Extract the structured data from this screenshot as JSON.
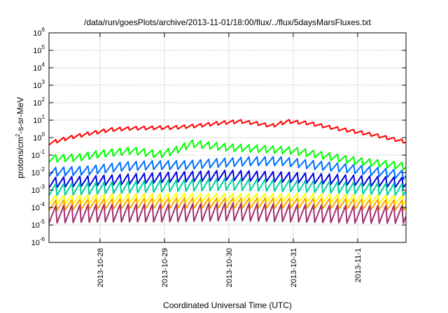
{
  "chart_data": {
    "type": "line",
    "title": "/data/run/goesPlots/archive/2013-11-01/18:00/flux/../flux/5daysMarsFluxes.txt",
    "xlabel": "Coordinated Universal Time (UTC)",
    "ylabel_base": "protons/cm",
    "ylabel_sup": "2",
    "ylabel_rest": "-s-sr-MeV",
    "y_scale": "log",
    "ylim": [
      1e-06,
      1000000.0
    ],
    "xlim": [
      "2013-10-27T05:00",
      "2013-11-01T18:00"
    ],
    "grid": true,
    "legend": "none",
    "y_ticks": [
      {
        "value": 1e-06,
        "base": "10",
        "exp": "-6"
      },
      {
        "value": 1e-05,
        "base": "10",
        "exp": "-5"
      },
      {
        "value": 0.0001,
        "base": "10",
        "exp": "-4"
      },
      {
        "value": 0.001,
        "base": "10",
        "exp": "-3"
      },
      {
        "value": 0.01,
        "base": "10",
        "exp": "-2"
      },
      {
        "value": 0.1,
        "base": "10",
        "exp": "-1"
      },
      {
        "value": 1,
        "base": "10",
        "exp": "0"
      },
      {
        "value": 10.0,
        "base": "10",
        "exp": "1"
      },
      {
        "value": 100.0,
        "base": "10",
        "exp": "2"
      },
      {
        "value": 1000.0,
        "base": "10",
        "exp": "3"
      },
      {
        "value": 10000.0,
        "base": "10",
        "exp": "4"
      },
      {
        "value": 100000.0,
        "base": "10",
        "exp": "5"
      },
      {
        "value": 1000000.0,
        "base": "10",
        "exp": "6"
      }
    ],
    "x_ticks": [
      {
        "value": "2013-10-28T00:00",
        "label": "2013-10-28"
      },
      {
        "value": "2013-10-29T00:00",
        "label": "2013-10-29"
      },
      {
        "value": "2013-10-30T00:00",
        "label": "2013-10-30"
      },
      {
        "value": "2013-10-31T00:00",
        "label": "2013-10-31"
      },
      {
        "value": "2013-11-01T00:00",
        "label": "2013-11-1"
      }
    ],
    "series": [
      {
        "color": "#ff0000",
        "points": [
          [
            "2013-10-27T05:00",
            0.5
          ],
          [
            "2013-10-27T12:00",
            1.0
          ],
          [
            "2013-10-27T20:00",
            1.8
          ],
          [
            "2013-10-28T04:00",
            3.0
          ],
          [
            "2013-10-28T12:00",
            3.6
          ],
          [
            "2013-10-28T20:00",
            3.8
          ],
          [
            "2013-10-29T04:00",
            4.0
          ],
          [
            "2013-10-29T12:00",
            5.0
          ],
          [
            "2013-10-29T20:00",
            7.0
          ],
          [
            "2013-10-30T04:00",
            9.0
          ],
          [
            "2013-10-30T10:00",
            7.0
          ],
          [
            "2013-10-30T16:00",
            5.0
          ],
          [
            "2013-10-30T22:00",
            9.0
          ],
          [
            "2013-10-31T06:00",
            7.0
          ],
          [
            "2013-10-31T14:00",
            4.0
          ],
          [
            "2013-10-31T22:00",
            2.5
          ],
          [
            "2013-11-01T06:00",
            1.5
          ],
          [
            "2013-11-01T18:00",
            0.6
          ]
        ]
      },
      {
        "color": "#00ff00",
        "points": [
          [
            "2013-10-27T05:00",
            0.07
          ],
          [
            "2013-10-27T16:00",
            0.08
          ],
          [
            "2013-10-28T00:00",
            0.13
          ],
          [
            "2013-10-28T12:00",
            0.2
          ],
          [
            "2013-10-28T22:00",
            0.12
          ],
          [
            "2013-10-29T04:00",
            0.2
          ],
          [
            "2013-10-29T10:00",
            0.5
          ],
          [
            "2013-10-29T16:00",
            0.4
          ],
          [
            "2013-10-30T00:00",
            0.3
          ],
          [
            "2013-10-30T12:00",
            0.25
          ],
          [
            "2013-10-31T00:00",
            0.2
          ],
          [
            "2013-10-31T12:00",
            0.1
          ],
          [
            "2013-11-01T00:00",
            0.05
          ],
          [
            "2013-11-01T18:00",
            0.025
          ]
        ]
      },
      {
        "color": "#0070ff",
        "points": [
          [
            "2013-10-27T05:00",
            0.012
          ],
          [
            "2013-10-27T20:00",
            0.015
          ],
          [
            "2013-10-28T08:00",
            0.025
          ],
          [
            "2013-10-28T20:00",
            0.03
          ],
          [
            "2013-10-29T08:00",
            0.03
          ],
          [
            "2013-10-29T20:00",
            0.04
          ],
          [
            "2013-10-30T08:00",
            0.05
          ],
          [
            "2013-10-30T20:00",
            0.05
          ],
          [
            "2013-10-31T08:00",
            0.03
          ],
          [
            "2013-10-31T20:00",
            0.02
          ],
          [
            "2013-11-01T08:00",
            0.012
          ],
          [
            "2013-11-01T18:00",
            0.008
          ]
        ]
      },
      {
        "color": "#0000dd",
        "points": [
          [
            "2013-10-27T05:00",
            0.003
          ],
          [
            "2013-10-28T00:00",
            0.004
          ],
          [
            "2013-10-29T00:00",
            0.006
          ],
          [
            "2013-10-30T00:00",
            0.008
          ],
          [
            "2013-10-31T00:00",
            0.006
          ],
          [
            "2013-11-01T00:00",
            0.004
          ],
          [
            "2013-11-01T18:00",
            0.003
          ]
        ]
      },
      {
        "color": "#00d0a0",
        "points": [
          [
            "2013-10-27T05:00",
            0.0012
          ],
          [
            "2013-10-28T00:00",
            0.0015
          ],
          [
            "2013-10-29T00:00",
            0.002
          ],
          [
            "2013-10-30T00:00",
            0.0025
          ],
          [
            "2013-10-31T00:00",
            0.002
          ],
          [
            "2013-11-01T00:00",
            0.0015
          ],
          [
            "2013-11-01T18:00",
            0.0012
          ]
        ]
      },
      {
        "color": "#ffff00",
        "points": [
          [
            "2013-10-27T05:00",
            0.0003
          ],
          [
            "2013-10-28T00:00",
            0.00035
          ],
          [
            "2013-10-29T00:00",
            0.0004
          ],
          [
            "2013-10-30T00:00",
            0.0004
          ],
          [
            "2013-10-31T00:00",
            0.0004
          ],
          [
            "2013-11-01T00:00",
            0.00035
          ],
          [
            "2013-11-01T18:00",
            0.0003
          ]
        ]
      },
      {
        "color": "#ffa000",
        "points": [
          [
            "2013-10-27T05:00",
            0.00015
          ],
          [
            "2013-10-28T00:00",
            0.00018
          ],
          [
            "2013-10-29T00:00",
            0.0002
          ],
          [
            "2013-10-30T00:00",
            0.0002
          ],
          [
            "2013-10-31T00:00",
            0.0002
          ],
          [
            "2013-11-01T00:00",
            0.00018
          ],
          [
            "2013-11-01T18:00",
            0.00015
          ]
        ]
      },
      {
        "color": "#a03070",
        "points": [
          [
            "2013-10-27T05:00",
            5e-05
          ],
          [
            "2013-10-28T00:00",
            6e-05
          ],
          [
            "2013-10-29T00:00",
            6e-05
          ],
          [
            "2013-10-30T00:00",
            7e-05
          ],
          [
            "2013-10-31T00:00",
            6e-05
          ],
          [
            "2013-11-01T00:00",
            5e-05
          ],
          [
            "2013-11-01T18:00",
            5e-05
          ]
        ]
      }
    ]
  }
}
